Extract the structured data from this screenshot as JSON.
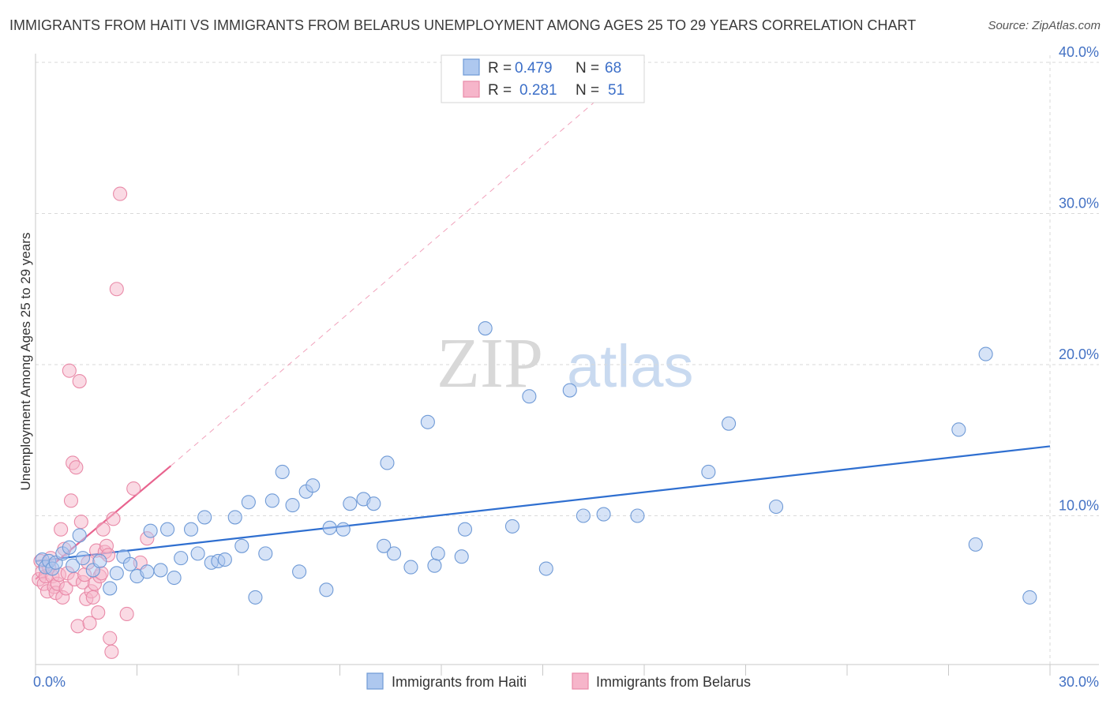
{
  "header": {
    "title": "IMMIGRANTS FROM HAITI VS IMMIGRANTS FROM BELARUS UNEMPLOYMENT AMONG AGES 25 TO 29 YEARS CORRELATION CHART",
    "source": "Source: ZipAtlas.com"
  },
  "watermark": {
    "zip": "ZIP",
    "atlas": "atlas"
  },
  "legend": {
    "r_label": "R =",
    "n_label": "N =",
    "series": [
      {
        "r": "0.479",
        "n": "68"
      },
      {
        "r": "0.281",
        "n": "51"
      }
    ]
  },
  "colors": {
    "haiti_fill": "#aec8ef",
    "haiti_stroke": "#6f9ad6",
    "haiti_line": "#2f6fd0",
    "belarus_fill": "#f6b5ca",
    "belarus_stroke": "#e98aa8",
    "belarus_line": "#e8638e",
    "tick_text": "#4472c4",
    "grid": "#d9d9d9"
  },
  "chart_data": {
    "type": "scatter",
    "title": "IMMIGRANTS FROM HAITI VS IMMIGRANTS FROM BELARUS UNEMPLOYMENT AMONG AGES 25 TO 29 YEARS CORRELATION CHART",
    "xlabel": "",
    "ylabel": "Unemployment Among Ages 25 to 29 years",
    "xlim": [
      0,
      30
    ],
    "ylim": [
      0,
      40
    ],
    "x_tick_labels": [
      "0.0%",
      "30.0%"
    ],
    "y_ticks": [
      {
        "value": 10,
        "label": "10.0%"
      },
      {
        "value": 20,
        "label": "20.0%"
      },
      {
        "value": 30,
        "label": "30.0%"
      },
      {
        "value": 40,
        "label": "40.0%"
      }
    ],
    "series": [
      {
        "name": "Immigrants from Haiti",
        "r": 0.479,
        "n": 68,
        "trend": {
          "x": [
            0,
            30
          ],
          "y": [
            7.0,
            14.6
          ]
        },
        "points": [
          [
            0.2,
            7.1
          ],
          [
            0.3,
            6.6
          ],
          [
            0.4,
            7.0
          ],
          [
            0.5,
            6.5
          ],
          [
            0.6,
            6.9
          ],
          [
            0.8,
            7.5
          ],
          [
            1.0,
            7.9
          ],
          [
            1.1,
            6.7
          ],
          [
            1.3,
            8.7
          ],
          [
            1.4,
            7.2
          ],
          [
            1.7,
            6.4
          ],
          [
            1.9,
            7.0
          ],
          [
            2.2,
            5.2
          ],
          [
            2.4,
            6.2
          ],
          [
            2.6,
            7.3
          ],
          [
            2.8,
            6.8
          ],
          [
            3.0,
            6.0
          ],
          [
            3.3,
            6.3
          ],
          [
            3.4,
            9.0
          ],
          [
            3.7,
            6.4
          ],
          [
            3.9,
            9.1
          ],
          [
            4.1,
            5.9
          ],
          [
            4.3,
            7.2
          ],
          [
            4.6,
            9.1
          ],
          [
            4.8,
            7.5
          ],
          [
            5.0,
            9.9
          ],
          [
            5.2,
            6.9
          ],
          [
            5.4,
            7.0
          ],
          [
            5.6,
            7.1
          ],
          [
            5.9,
            9.9
          ],
          [
            6.1,
            8.0
          ],
          [
            6.3,
            10.9
          ],
          [
            6.5,
            4.6
          ],
          [
            6.8,
            7.5
          ],
          [
            7.0,
            11.0
          ],
          [
            7.3,
            12.9
          ],
          [
            7.6,
            10.7
          ],
          [
            7.8,
            6.3
          ],
          [
            8.0,
            11.6
          ],
          [
            8.2,
            12.0
          ],
          [
            8.6,
            5.1
          ],
          [
            8.7,
            9.2
          ],
          [
            9.1,
            9.1
          ],
          [
            9.3,
            10.8
          ],
          [
            9.7,
            11.1
          ],
          [
            10.0,
            10.8
          ],
          [
            10.3,
            8.0
          ],
          [
            10.4,
            13.5
          ],
          [
            10.6,
            7.5
          ],
          [
            11.1,
            6.6
          ],
          [
            11.6,
            16.2
          ],
          [
            11.8,
            6.7
          ],
          [
            11.9,
            7.5
          ],
          [
            12.6,
            7.3
          ],
          [
            12.7,
            9.1
          ],
          [
            13.3,
            22.4
          ],
          [
            14.1,
            9.3
          ],
          [
            14.6,
            17.9
          ],
          [
            15.1,
            6.5
          ],
          [
            15.8,
            18.3
          ],
          [
            16.2,
            10.0
          ],
          [
            16.8,
            10.1
          ],
          [
            17.8,
            10.0
          ],
          [
            19.9,
            12.9
          ],
          [
            20.5,
            16.1
          ],
          [
            21.9,
            10.6
          ],
          [
            27.3,
            15.7
          ],
          [
            27.8,
            8.1
          ],
          [
            28.1,
            20.7
          ],
          [
            29.4,
            4.6
          ]
        ]
      },
      {
        "name": "Immigrants from Belarus",
        "r": 0.281,
        "n": 51,
        "trend": {
          "x": [
            0,
            4
          ],
          "y": [
            5.8,
            13.3
          ]
        },
        "trend_dashed": {
          "x": [
            4,
            18
          ],
          "y": [
            13.3,
            40.2
          ]
        },
        "points": [
          [
            0.1,
            5.8
          ],
          [
            0.15,
            7.0
          ],
          [
            0.2,
            6.3
          ],
          [
            0.25,
            5.5
          ],
          [
            0.3,
            6.0
          ],
          [
            0.35,
            5.0
          ],
          [
            0.4,
            6.6
          ],
          [
            0.45,
            7.2
          ],
          [
            0.5,
            6.0
          ],
          [
            0.55,
            5.3
          ],
          [
            0.6,
            4.9
          ],
          [
            0.65,
            5.5
          ],
          [
            0.7,
            6.1
          ],
          [
            0.75,
            9.1
          ],
          [
            0.8,
            4.6
          ],
          [
            0.85,
            7.8
          ],
          [
            0.9,
            5.2
          ],
          [
            0.95,
            6.2
          ],
          [
            1.0,
            19.6
          ],
          [
            1.05,
            11.0
          ],
          [
            1.1,
            13.5
          ],
          [
            1.15,
            5.8
          ],
          [
            1.2,
            13.2
          ],
          [
            1.25,
            2.7
          ],
          [
            1.3,
            18.9
          ],
          [
            1.35,
            9.6
          ],
          [
            1.4,
            5.6
          ],
          [
            1.45,
            6.1
          ],
          [
            1.5,
            4.5
          ],
          [
            1.55,
            6.9
          ],
          [
            1.6,
            2.9
          ],
          [
            1.65,
            5.0
          ],
          [
            1.7,
            4.6
          ],
          [
            1.75,
            5.5
          ],
          [
            1.8,
            7.7
          ],
          [
            1.85,
            3.6
          ],
          [
            1.9,
            6.0
          ],
          [
            1.95,
            6.2
          ],
          [
            2.0,
            9.1
          ],
          [
            2.05,
            7.6
          ],
          [
            2.1,
            8.0
          ],
          [
            2.15,
            7.4
          ],
          [
            2.2,
            1.9
          ],
          [
            2.25,
            1.0
          ],
          [
            2.3,
            9.8
          ],
          [
            2.4,
            25.0
          ],
          [
            2.5,
            31.3
          ],
          [
            2.7,
            3.5
          ],
          [
            2.9,
            11.8
          ],
          [
            3.1,
            6.9
          ],
          [
            3.3,
            8.5
          ]
        ]
      }
    ],
    "legend_position": "bottom"
  }
}
